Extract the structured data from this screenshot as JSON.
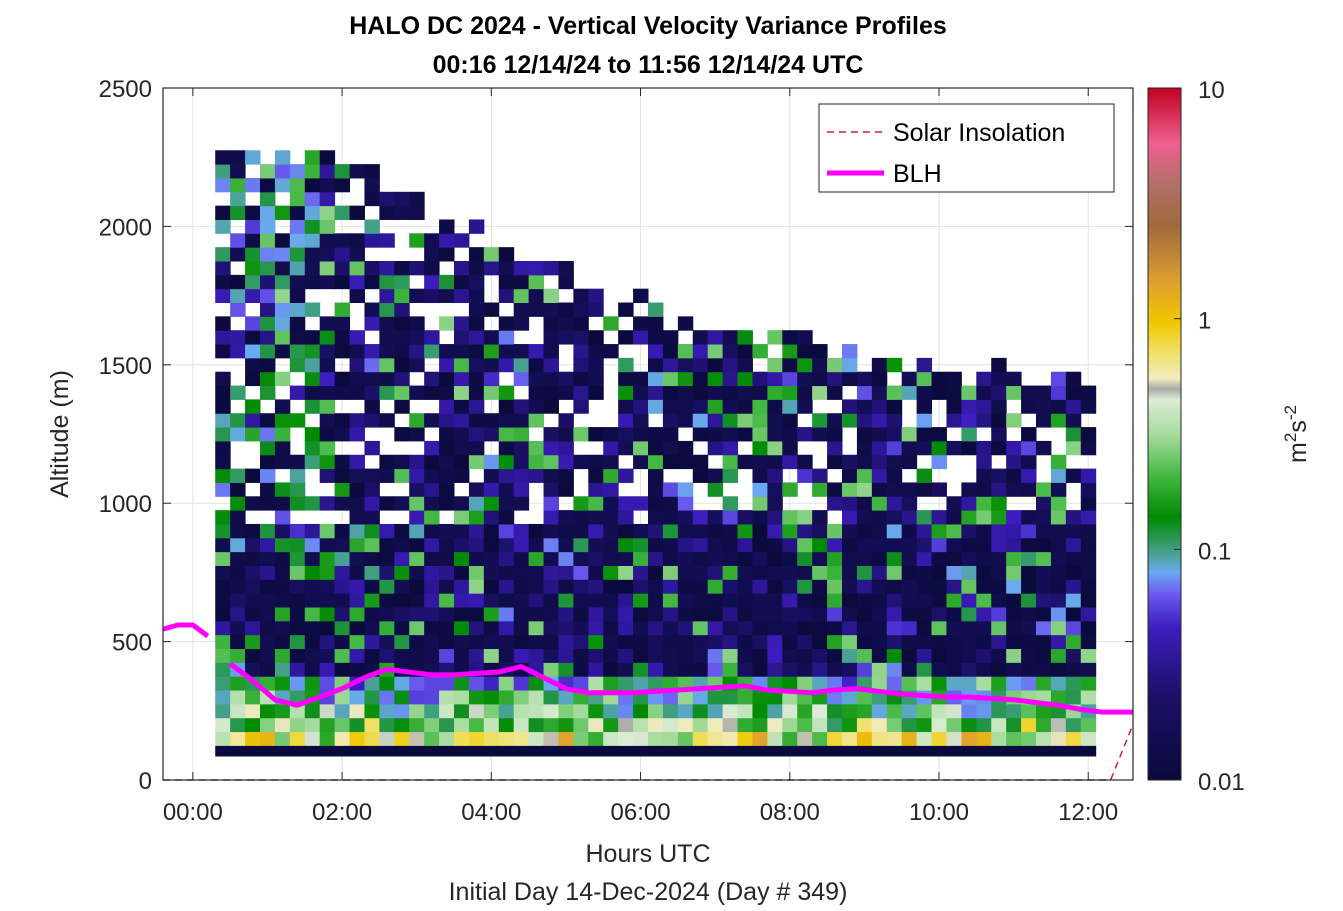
{
  "chart_data": {
    "type": "heatmap",
    "title": "HALO DC 2024 - Vertical Velocity Variance Profiles",
    "subtitle": "00:16 12/14/24 to 11:56 12/14/24  UTC",
    "xlabel": "Hours UTC",
    "footer": "Initial Day 14-Dec-2024 (Day # 349)",
    "ylabel": "Altitude (m)",
    "colorbar_label_base": "m",
    "colorbar_label_sup1": "2",
    "colorbar_label_mid": "s",
    "colorbar_label_sup2": "-2",
    "xlim_hours": [
      -0.4,
      12.6
    ],
    "ylim": [
      0,
      2500
    ],
    "x_ticks": [
      {
        "value": 0,
        "label": "00:00"
      },
      {
        "value": 2,
        "label": "02:00"
      },
      {
        "value": 4,
        "label": "04:00"
      },
      {
        "value": 6,
        "label": "06:00"
      },
      {
        "value": 8,
        "label": "08:00"
      },
      {
        "value": 10,
        "label": "10:00"
      },
      {
        "value": 12,
        "label": "12:00"
      }
    ],
    "y_ticks": [
      {
        "value": 0,
        "label": "0"
      },
      {
        "value": 500,
        "label": "500"
      },
      {
        "value": 1000,
        "label": "1000"
      },
      {
        "value": 1500,
        "label": "1500"
      },
      {
        "value": 2000,
        "label": "2000"
      },
      {
        "value": 2500,
        "label": "2500"
      }
    ],
    "colorbar": {
      "scale": "log",
      "range": [
        0.01,
        10
      ],
      "ticks": [
        {
          "value": 0.01,
          "label": "0.01"
        },
        {
          "value": 0.1,
          "label": "0.1"
        },
        {
          "value": 1,
          "label": "1"
        },
        {
          "value": 10,
          "label": "10"
        }
      ]
    },
    "grid": true,
    "legend_position": "top-right",
    "legend": [
      {
        "label": "Solar Insolation",
        "color": "#cc2222",
        "style": "dashed"
      },
      {
        "label": "BLH",
        "color": "#ff00ff",
        "style": "solid"
      }
    ],
    "blh_series": {
      "name": "BLH",
      "color": "#ff00ff",
      "segments": [
        {
          "x": [
            -0.4,
            -0.2,
            0.0,
            0.2
          ],
          "y": [
            545,
            560,
            560,
            520
          ]
        },
        {
          "x": [
            0.5,
            0.8,
            1.1,
            1.4,
            1.7,
            2.0,
            2.3,
            2.6,
            2.9,
            3.2,
            3.5,
            3.8,
            4.1,
            4.4,
            4.7,
            5.0,
            5.3,
            5.6,
            5.9,
            6.2,
            6.5,
            6.8,
            7.1,
            7.4,
            7.7,
            8.0,
            8.3,
            8.6,
            8.9,
            9.2,
            9.5,
            9.8,
            10.1,
            10.4,
            10.7,
            11.0,
            11.3,
            11.6,
            11.9,
            12.2,
            12.6
          ],
          "y": [
            420,
            360,
            290,
            270,
            300,
            330,
            370,
            400,
            390,
            380,
            380,
            385,
            390,
            410,
            370,
            330,
            315,
            315,
            315,
            320,
            325,
            330,
            335,
            340,
            325,
            320,
            315,
            325,
            330,
            320,
            310,
            305,
            300,
            300,
            295,
            290,
            280,
            270,
            255,
            245,
            245
          ]
        }
      ]
    },
    "solar_series": {
      "name": "Solar Insolation",
      "color": "#cc2222",
      "x": [
        -0.4,
        12.3,
        12.6
      ],
      "y": [
        0,
        0,
        200
      ]
    },
    "variance_profiles": {
      "units": "m2 s-2",
      "time_step_hours": 0.2,
      "altitude_step_m": 50,
      "bottom_layer_altitude_m": 100,
      "near_surface_values": [
        0.5,
        0.3,
        0.2,
        0.15,
        0.12
      ],
      "sample_columns": [
        {
          "time_hours": 0.3,
          "top_altitude_m": 2300
        },
        {
          "time_hours": 2.0,
          "top_altitude_m": 2250
        },
        {
          "time_hours": 4.0,
          "top_altitude_m": 1950
        },
        {
          "time_hours": 6.0,
          "top_altitude_m": 1700
        },
        {
          "time_hours": 8.0,
          "top_altitude_m": 1600
        },
        {
          "time_hours": 10.0,
          "top_altitude_m": 1500
        },
        {
          "time_hours": 12.0,
          "top_altitude_m": 1450
        }
      ]
    }
  }
}
